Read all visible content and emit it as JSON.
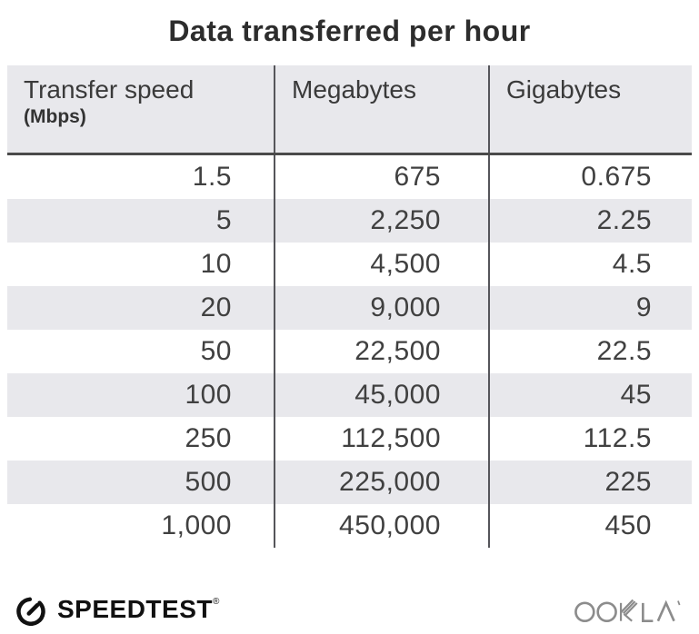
{
  "title": "Data transferred per hour",
  "table": {
    "columns": [
      {
        "label": "Transfer speed",
        "sublabel": "(Mbps)"
      },
      {
        "label": "Megabytes",
        "sublabel": ""
      },
      {
        "label": "Gigabytes",
        "sublabel": ""
      }
    ],
    "rows": [
      [
        "1.5",
        "675",
        "0.675"
      ],
      [
        "5",
        "2,250",
        "2.25"
      ],
      [
        "10",
        "4,500",
        "4.5"
      ],
      [
        "20",
        "9,000",
        "9"
      ],
      [
        "50",
        "22,500",
        "22.5"
      ],
      [
        "100",
        "45,000",
        "45"
      ],
      [
        "250",
        "112,500",
        "112.5"
      ],
      [
        "500",
        "225,000",
        "225"
      ],
      [
        "1,000",
        "450,000",
        "450"
      ]
    ]
  },
  "chart_data": {
    "type": "table",
    "title": "Data transferred per hour",
    "columns": [
      "Transfer speed (Mbps)",
      "Megabytes",
      "Gigabytes"
    ],
    "rows": [
      [
        1.5,
        675,
        0.675
      ],
      [
        5,
        2250,
        2.25
      ],
      [
        10,
        4500,
        4.5
      ],
      [
        20,
        9000,
        9
      ],
      [
        50,
        22500,
        22.5
      ],
      [
        100,
        45000,
        45
      ],
      [
        250,
        112500,
        112.5
      ],
      [
        500,
        225000,
        225
      ],
      [
        1000,
        450000,
        450
      ]
    ]
  },
  "footer": {
    "speedtest_label": "SPEEDTEST",
    "speedtest_trademark": "®",
    "ookla_label": "OOKLA",
    "ookla_trademark": "™"
  },
  "colors": {
    "background": "#ffffff",
    "title_text": "#2d2d2d",
    "header_bg": "#e8e8ec",
    "stripe_bg": "#e8e8ec",
    "divider_line": "#55555a",
    "header_rule": "#4a4a4a",
    "table_text": "#404040",
    "speedtest_black": "#111111",
    "ookla_gray": "#8c8c8c"
  }
}
